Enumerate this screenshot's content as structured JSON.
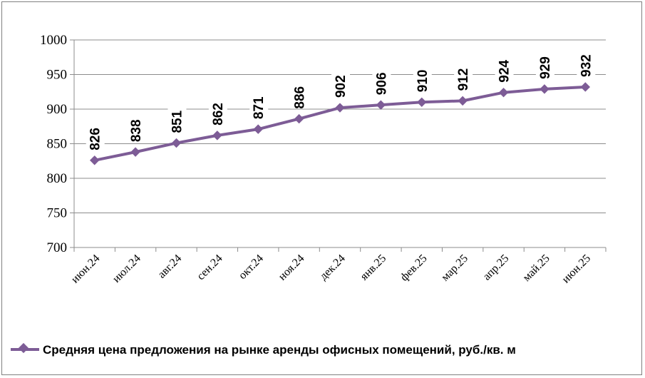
{
  "chart_data": {
    "type": "line",
    "title": "",
    "xlabel": "",
    "ylabel": "",
    "categories": [
      "июн.24",
      "июл.24",
      "авг.24",
      "сен.24",
      "окт.24",
      "ноя.24",
      "дек.24",
      "янв.25",
      "фев.25",
      "мар.25",
      "апр.25",
      "май.25",
      "июн.25"
    ],
    "series": [
      {
        "name": "Средняя цена предложения на рынке аренды офисных помещений,  руб./кв. м",
        "values": [
          826,
          838,
          851,
          862,
          871,
          886,
          902,
          906,
          910,
          912,
          924,
          929,
          932
        ],
        "color": "#7D5C96"
      }
    ],
    "ylim": [
      700,
      1000
    ],
    "yticks": [
      700,
      750,
      800,
      850,
      900,
      950,
      1000
    ],
    "grid": "horizontal",
    "legend": "bottom-left",
    "data_labels": true
  }
}
